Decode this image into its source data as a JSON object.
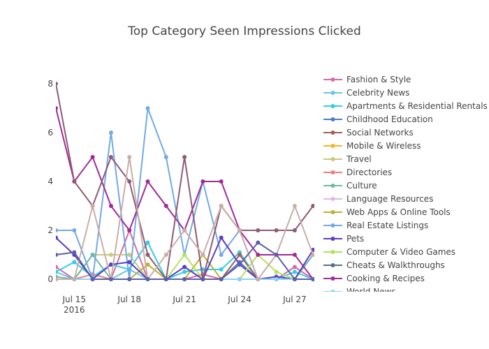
{
  "chart_data": {
    "type": "line",
    "title": "Top Category Seen Impressions Clicked",
    "xlabel": "",
    "ylabel": "",
    "x": [
      "2016-07-14",
      "2016-07-15",
      "2016-07-16",
      "2016-07-17",
      "2016-07-18",
      "2016-07-19",
      "2016-07-20",
      "2016-07-21",
      "2016-07-22",
      "2016-07-23",
      "2016-07-24",
      "2016-07-25",
      "2016-07-26",
      "2016-07-27",
      "2016-07-28"
    ],
    "x_tick_labels": [
      {
        "date": "2016-07-15",
        "label": "Jul 15",
        "sub": "2016"
      },
      {
        "date": "2016-07-18",
        "label": "Jul 18",
        "sub": ""
      },
      {
        "date": "2016-07-21",
        "label": "Jul 21",
        "sub": ""
      },
      {
        "date": "2016-07-24",
        "label": "Jul 24",
        "sub": ""
      },
      {
        "date": "2016-07-27",
        "label": "Jul 27",
        "sub": ""
      }
    ],
    "y_ticks": [
      0,
      2,
      4,
      6,
      8
    ],
    "ylim": [
      -0.3,
      8.3
    ],
    "grid": false,
    "legend_position": "right",
    "series": [
      {
        "name": "Fashion & Style",
        "color": "#d86aa8",
        "values": [
          0.5,
          0,
          0,
          0,
          2,
          0,
          0,
          0,
          0.2,
          0,
          0,
          0,
          0,
          0.5,
          0
        ]
      },
      {
        "name": "Celebrity News",
        "color": "#6ec3e3",
        "values": [
          0.3,
          0,
          0,
          0,
          0.4,
          0,
          0,
          0,
          0,
          0,
          0,
          0,
          0,
          0,
          0
        ]
      },
      {
        "name": "Apartments & Residential Rentals",
        "color": "#33cde8",
        "values": [
          0.3,
          0.7,
          0.1,
          0.6,
          0.4,
          1.5,
          0,
          0.3,
          0.4,
          0.4,
          1.1,
          0,
          0,
          0.3,
          0
        ]
      },
      {
        "name": "Childhood Education",
        "color": "#4a7ec6",
        "values": [
          0,
          0,
          0,
          0,
          0,
          0,
          0,
          0,
          0,
          0,
          0.7,
          0,
          0,
          0,
          0
        ]
      },
      {
        "name": "Social Networks",
        "color": "#a65e55",
        "values": [
          0,
          0,
          0,
          0,
          0,
          0,
          0,
          0,
          0,
          0,
          1,
          0,
          0,
          0,
          0
        ]
      },
      {
        "name": "Mobile & Wireless",
        "color": "#f3b623",
        "values": [
          0,
          0,
          0,
          0,
          0,
          0,
          0,
          0,
          0,
          0,
          0,
          0,
          0,
          0,
          0
        ]
      },
      {
        "name": "Travel",
        "color": "#c6c981",
        "values": [
          0,
          0,
          1,
          1,
          1,
          0,
          0,
          0,
          0,
          0,
          0,
          0,
          0,
          0,
          0
        ]
      },
      {
        "name": "Directories",
        "color": "#e8817f",
        "values": [
          0,
          0,
          0.2,
          0,
          0,
          0,
          0,
          0,
          0,
          0,
          0,
          0,
          0,
          0,
          0
        ]
      },
      {
        "name": "Culture",
        "color": "#6fb8a5",
        "values": [
          0.1,
          0,
          1,
          0,
          0,
          0,
          0,
          0,
          0,
          0,
          0,
          0,
          0,
          0,
          1
        ]
      },
      {
        "name": "Language Resources",
        "color": "#e6b4ec",
        "values": [
          0,
          0,
          0,
          0,
          0,
          0,
          0,
          0,
          0,
          0,
          0,
          0,
          0,
          0,
          0
        ]
      },
      {
        "name": "Web Apps & Online Tools",
        "color": "#bcb132",
        "values": [
          0,
          0,
          0,
          0,
          0,
          0.6,
          0,
          0,
          1,
          0,
          0,
          0,
          0,
          0,
          0
        ]
      },
      {
        "name": "Real Estate Listings",
        "color": "#72aae4",
        "values": [
          2,
          2,
          0,
          6,
          0,
          7,
          5,
          1,
          4,
          1,
          2,
          0,
          0,
          0,
          0
        ]
      },
      {
        "name": "Pets",
        "color": "#5a3ec6",
        "values": [
          1.7,
          1,
          0,
          0.6,
          0.7,
          0,
          0,
          0.5,
          0,
          1.7,
          0.6,
          0,
          0.1,
          0,
          1.2
        ]
      },
      {
        "name": "Computer & Video Games",
        "color": "#b3e35d",
        "values": [
          0,
          0,
          0,
          0,
          0,
          0,
          0,
          1,
          0,
          0,
          0,
          1,
          0.3,
          0,
          0
        ]
      },
      {
        "name": "Cheats & Walkthroughs",
        "color": "#5f7082",
        "values": [
          0,
          0,
          0,
          0,
          0,
          0,
          0,
          0,
          0,
          0,
          0,
          0,
          0,
          0,
          0
        ]
      },
      {
        "name": "Cooking & Recipes",
        "color": "#a02c98",
        "values": [
          7,
          4,
          5,
          3,
          2,
          4,
          3,
          2,
          4,
          4,
          2,
          1,
          1,
          1,
          0
        ]
      },
      {
        "name": "World News",
        "color": "#8fd3f0",
        "values": [
          0,
          0,
          0,
          0,
          0,
          0,
          0,
          0,
          0,
          0,
          0,
          0,
          0,
          0,
          0
        ]
      },
      {
        "name": "",
        "color": "#8e5a74",
        "values": [
          8,
          4,
          3,
          5,
          4,
          1,
          0,
          5,
          0,
          3,
          2,
          2,
          2,
          2,
          3
        ]
      },
      {
        "name": "",
        "color": "#c9aea8",
        "values": [
          0,
          0,
          3,
          0,
          5,
          0,
          1,
          2,
          1,
          3,
          2,
          0,
          1,
          3,
          1
        ]
      },
      {
        "name": "",
        "color": "#5b5fa8",
        "values": [
          1,
          1.1,
          0,
          0,
          0,
          0,
          0,
          0,
          0,
          0,
          0.6,
          1.5,
          1,
          0,
          0
        ]
      }
    ]
  }
}
